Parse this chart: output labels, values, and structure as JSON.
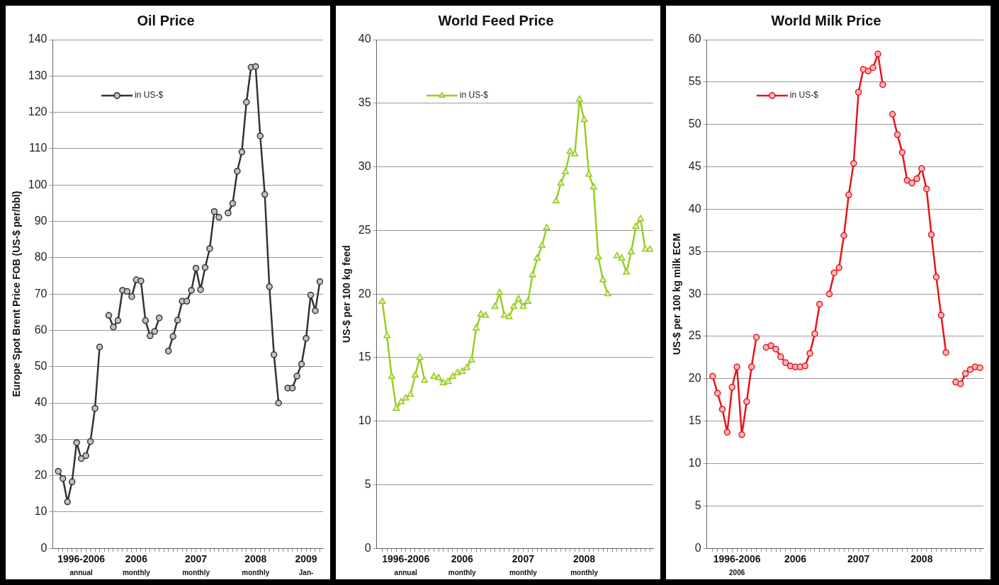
{
  "chart_data": [
    {
      "type": "line",
      "title": "Oil Price",
      "ylabel": "Europe Spot Brent Price FOB (US-$ per/bbl)",
      "categories": [
        null,
        null,
        null,
        null,
        null,
        "1996-2006",
        null,
        null,
        null,
        null,
        null,
        null,
        null,
        null,
        null,
        null,
        null,
        "2006",
        null,
        null,
        null,
        null,
        null,
        null,
        null,
        null,
        null,
        null,
        null,
        null,
        "2007",
        null,
        null,
        null,
        null,
        null,
        null,
        null,
        null,
        null,
        null,
        null,
        null,
        "2008",
        null,
        null,
        null,
        null,
        null,
        null,
        null,
        null,
        null,
        null,
        "2009",
        null,
        null,
        null
      ],
      "series": [
        {
          "name": "in US-$",
          "color": "#333333",
          "values": [
            21.2,
            19.2,
            12.8,
            18.3,
            29.1,
            24.7,
            25.5,
            29.4,
            38.5,
            55.4,
            null,
            64.1,
            60.9,
            62.7,
            71,
            70.7,
            69.3,
            73.9,
            73.6,
            62.7,
            58.5,
            59.7,
            63.4,
            null,
            54.3,
            58.3,
            62.8,
            68,
            68,
            71,
            77.1,
            71.2,
            77.3,
            82.5,
            92.7,
            91.1,
            null,
            92.3,
            94.9,
            103.8,
            109.1,
            122.8,
            132.4,
            132.6,
            113.5,
            97.4,
            72,
            53.3,
            40,
            null,
            44.1,
            44.1,
            47.4,
            50.7,
            57.8,
            69.7,
            65.4,
            73.4
          ]
        }
      ],
      "ylim": [
        0,
        140
      ],
      "yticks": [
        0,
        10,
        20,
        30,
        40,
        50,
        60,
        70,
        80,
        90,
        100,
        110,
        120,
        130,
        140
      ],
      "grid": "y",
      "legend": "top left",
      "marker": "circle",
      "annotations": [
        "annual",
        "monthly",
        "monthly",
        "monthly",
        "Jan-"
      ]
    },
    {
      "type": "line",
      "title": "World Feed Price",
      "ylabel": "US-$ per 100 kg feed",
      "categories": [
        null,
        null,
        null,
        null,
        null,
        "1996-2006",
        null,
        null,
        null,
        null,
        null,
        null,
        null,
        null,
        null,
        null,
        null,
        "2006",
        null,
        null,
        null,
        null,
        null,
        null,
        null,
        null,
        null,
        null,
        null,
        null,
        "2007",
        null,
        null,
        null,
        null,
        null,
        null,
        null,
        null,
        null,
        null,
        null,
        null,
        "2008",
        null,
        null,
        null,
        null,
        null,
        null,
        null,
        null,
        null,
        null,
        null,
        null,
        null,
        null
      ],
      "series": [
        {
          "name": "in US-$",
          "color": "#99cc22",
          "values": [
            19.4,
            16.7,
            13.5,
            11.0,
            11.5,
            11.8,
            12.1,
            13.6,
            15.0,
            13.2,
            null,
            13.5,
            13.4,
            13.0,
            13.1,
            13.5,
            13.8,
            13.9,
            14.2,
            14.8,
            17.3,
            18.4,
            18.3,
            null,
            19.0,
            20.1,
            18.3,
            18.2,
            19.0,
            19.6,
            19.0,
            19.4,
            21.5,
            22.8,
            23.8,
            25.2,
            null,
            27.3,
            28.7,
            29.6,
            31.2,
            31.0,
            35.3,
            33.7,
            29.4,
            28.4,
            22.9,
            21.1,
            20.0,
            null,
            23.0,
            22.8,
            21.7,
            23.3,
            25.3,
            25.9,
            23.5,
            23.5
          ]
        }
      ],
      "ylim": [
        0,
        40
      ],
      "yticks": [
        0,
        5,
        10,
        15,
        20,
        25,
        30,
        35,
        40
      ],
      "grid": "y",
      "legend": "top left",
      "marker": "triangle",
      "annotations": [
        "annual",
        "monthly",
        "monthly",
        "monthly"
      ]
    },
    {
      "type": "line",
      "title": "World Milk Price",
      "ylabel": "US-$ per 100 kg milk ECM",
      "categories": [
        null,
        null,
        null,
        null,
        null,
        "1996-2006",
        null,
        null,
        null,
        null,
        null,
        null,
        null,
        null,
        null,
        null,
        null,
        "2006",
        null,
        null,
        null,
        null,
        null,
        null,
        null,
        null,
        null,
        null,
        null,
        null,
        "2007",
        null,
        null,
        null,
        null,
        null,
        null,
        null,
        null,
        null,
        null,
        null,
        null,
        "2008",
        null,
        null,
        null,
        null,
        null,
        null,
        null,
        null,
        null,
        null,
        null,
        null
      ],
      "series": [
        {
          "name": "in US-$",
          "color": "#e8141c",
          "values": [
            20.3,
            18.3,
            16.4,
            13.7,
            19.0,
            21.4,
            13.4,
            17.3,
            21.4,
            24.9,
            null,
            23.7,
            23.9,
            23.5,
            22.6,
            21.9,
            21.5,
            21.4,
            21.4,
            21.5,
            23.0,
            25.3,
            28.8,
            null,
            30.0,
            32.5,
            33.1,
            36.9,
            41.7,
            45.4,
            53.8,
            56.5,
            56.3,
            56.7,
            58.3,
            54.7,
            null,
            51.2,
            48.8,
            46.7,
            43.4,
            43.1,
            43.6,
            44.8,
            42.4,
            37.0,
            32.0,
            27.5,
            23.1,
            null,
            19.6,
            19.4,
            20.6,
            21.1,
            21.4,
            21.3
          ]
        }
      ],
      "ylim": [
        0,
        60
      ],
      "yticks": [
        0,
        5,
        10,
        15,
        20,
        25,
        30,
        35,
        40,
        45,
        50,
        55,
        60
      ],
      "grid": "y",
      "legend": "top left",
      "marker": "circle",
      "annotations": [
        "2006"
      ]
    }
  ]
}
